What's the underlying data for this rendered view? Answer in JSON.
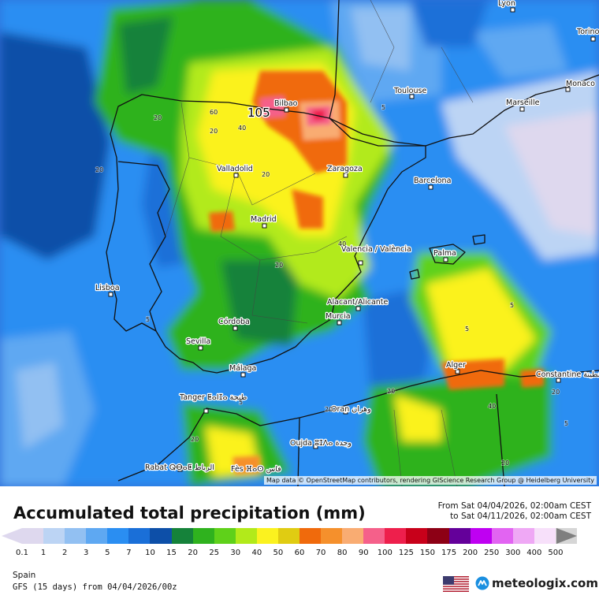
{
  "header": {
    "title": "Accumulated total precipitation (mm)",
    "period_from": "From Sat 04/04/2026, 02:00am CEST",
    "period_to": "to Sat 04/11/2026, 02:00am CEST"
  },
  "map": {
    "attribution": "Map data © OpenStreetMap contributors, rendering GIScience Research Group @ Heidelberg University",
    "max_value_label": "105",
    "cities": [
      "Lyon",
      "Torino",
      "Monaco",
      "Toulouse",
      "Marseille",
      "Bilbao",
      "Valladolid",
      "Zaragoza",
      "Barcelona",
      "Madrid",
      "Valencia / València",
      "Palma",
      "Lisboa",
      "Alacant/Alicante",
      "Córdoba",
      "Murcia",
      "Sevilla",
      "Alger",
      "Constantine قسنطينة",
      "Málaga",
      "Tanger ⵟⴰⵏⵊⴰ طنجة",
      "Oran وهران",
      "Oujda ⵓⵊⴷⴰ وجدة",
      "Rabat ⵕⴱⴰⵟ الرباط",
      "Fès ⴼⴰⵙ فاس"
    ],
    "contour_labels": [
      "60",
      "40",
      "20",
      "20",
      "20",
      "20",
      "20",
      "5",
      "5",
      "40",
      "20",
      "5",
      "20",
      "5",
      "20",
      "20",
      "40",
      "5",
      "20",
      "5"
    ]
  },
  "legend": {
    "values": [
      "0.1",
      "1",
      "2",
      "3",
      "5",
      "7",
      "10",
      "15",
      "20",
      "25",
      "30",
      "40",
      "50",
      "60",
      "70",
      "80",
      "90",
      "100",
      "125",
      "150",
      "175",
      "200",
      "250",
      "300",
      "400",
      "500"
    ],
    "colors": [
      "#ded8ee",
      "#bcd4f4",
      "#92c0f2",
      "#5ea8f2",
      "#2a8ef2",
      "#1a6fd8",
      "#0d4fa8",
      "#15823a",
      "#2fb21e",
      "#5fd11a",
      "#b2ea1a",
      "#fbf21f",
      "#e0cc12",
      "#f06a0c",
      "#f5902c",
      "#f9ac72",
      "#f5608a",
      "#ee1f4c",
      "#c8001a",
      "#8d0015",
      "#64009a",
      "#bf00f2",
      "#e264f2",
      "#efa8f5",
      "#f7e0fa",
      "#d6d6d6"
    ]
  },
  "footer": {
    "region": "Spain",
    "model": "GFS (15 days) from 04/04/2026/00z",
    "brand": "meteologix.com",
    "flag_icon": "us-flag-icon",
    "brand_icon": "meteologix-logo-icon"
  }
}
